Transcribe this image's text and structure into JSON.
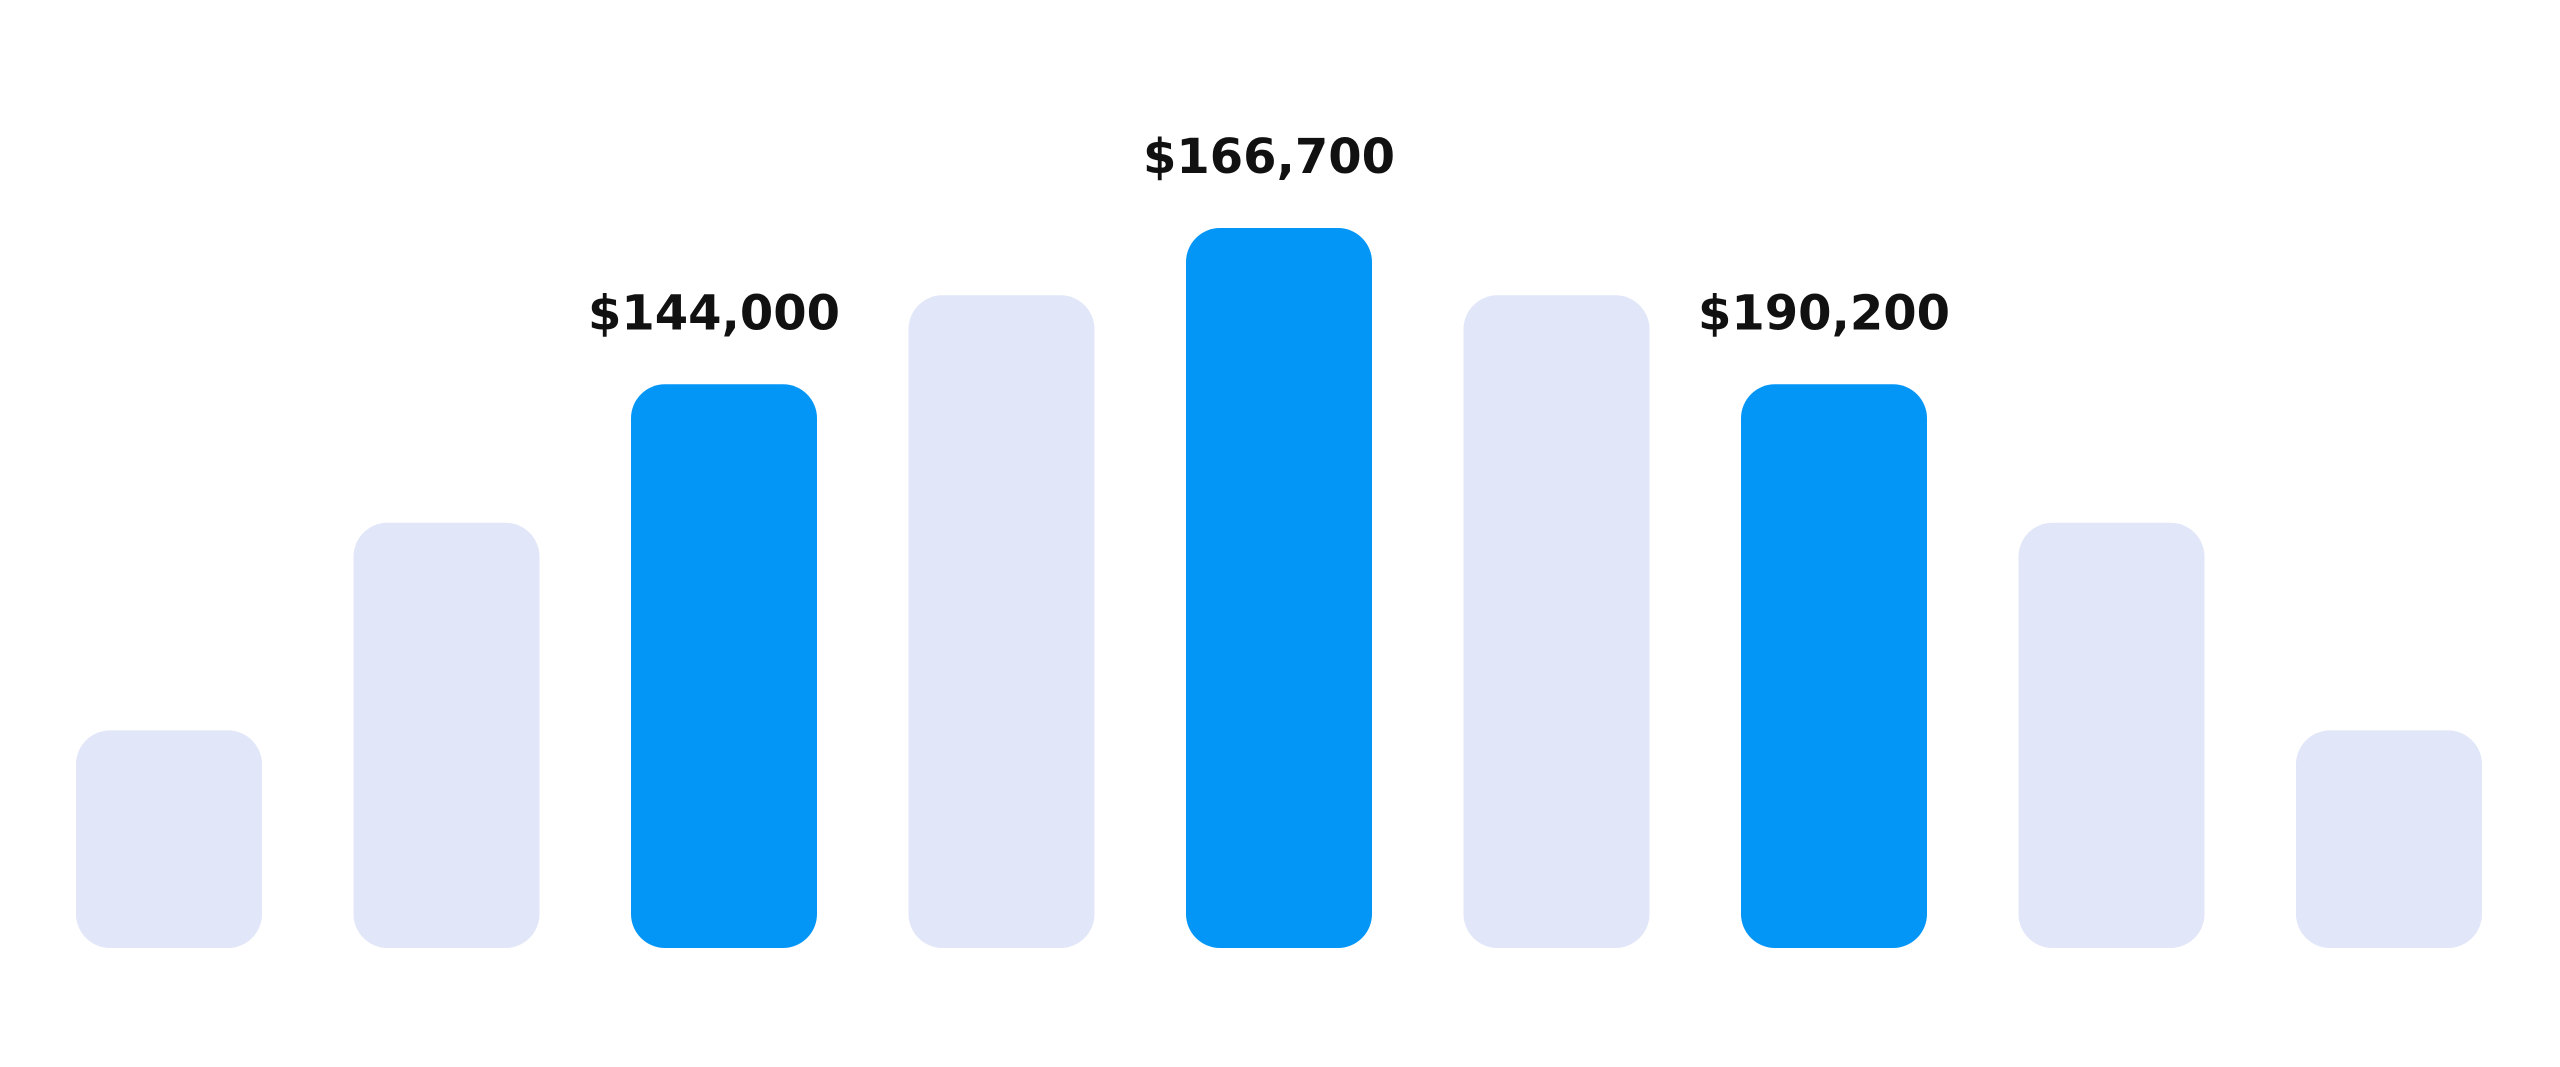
{
  "chart_data": {
    "type": "bar",
    "categories": [
      "",
      "",
      "",
      "",
      "",
      "",
      "",
      "",
      ""
    ],
    "values": [
      110,
      215,
      285,
      330,
      364,
      330,
      285,
      215,
      110
    ],
    "highlighted": [
      false,
      false,
      true,
      false,
      true,
      false,
      true,
      false,
      false
    ],
    "data_labels": [
      "",
      "",
      "$144,000",
      "",
      "$166,700",
      "",
      "$190,200",
      "",
      ""
    ],
    "title": "",
    "xlabel": "",
    "ylabel": "",
    "ylim": [
      0,
      364
    ],
    "grid": false,
    "legend": "none"
  },
  "colors": {
    "highlight": "#0396f6",
    "muted": "#e1e6f8",
    "label": "#111111",
    "background": "#ffffff"
  }
}
